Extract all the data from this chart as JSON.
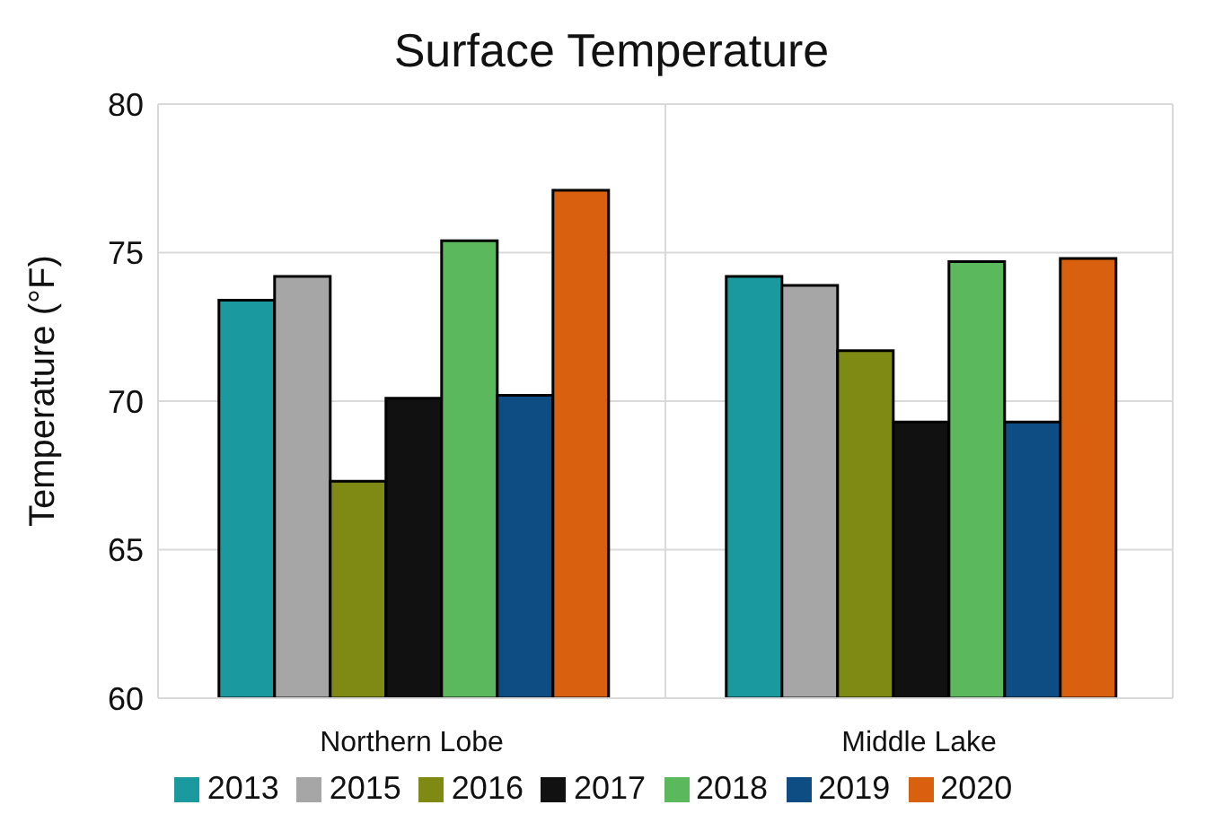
{
  "chart_data": {
    "type": "bar",
    "title": "Surface Temperature",
    "ylabel": "Temperature (°F)",
    "categories": [
      "Northern Lobe",
      "Middle Lake"
    ],
    "series": [
      {
        "name": "2013",
        "color": "#1a9a9e",
        "values": [
          73.4,
          74.2
        ]
      },
      {
        "name": "2015",
        "color": "#a6a6a6",
        "values": [
          74.2,
          73.9
        ]
      },
      {
        "name": "2016",
        "color": "#7f8a14",
        "values": [
          67.3,
          71.7
        ]
      },
      {
        "name": "2017",
        "color": "#111111",
        "values": [
          70.1,
          69.3
        ]
      },
      {
        "name": "2018",
        "color": "#5cb85c",
        "values": [
          75.4,
          74.7
        ]
      },
      {
        "name": "2019",
        "color": "#0e4c84",
        "values": [
          70.2,
          69.3
        ]
      },
      {
        "name": "2020",
        "color": "#d9600f",
        "values": [
          77.1,
          74.8
        ]
      }
    ],
    "ylim": [
      60,
      80
    ],
    "yticks": [
      60,
      65,
      70,
      75,
      80
    ],
    "grid": true,
    "legend": "bottom"
  }
}
